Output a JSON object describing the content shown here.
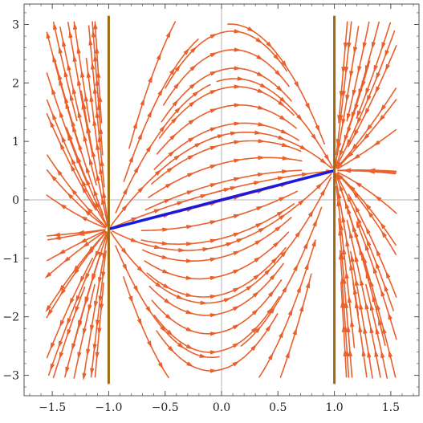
{
  "chart_data": {
    "type": "stream",
    "title": "",
    "xlabel": "",
    "ylabel": "",
    "xlim": [
      -1.75,
      1.75
    ],
    "ylim": [
      -3.35,
      3.35
    ],
    "x_ticks": [
      {
        "value": -1.5,
        "label": "−1.5"
      },
      {
        "value": -1.0,
        "label": "−1.0"
      },
      {
        "value": -0.5,
        "label": "−0.5"
      },
      {
        "value": 0.0,
        "label": "0.0"
      },
      {
        "value": 0.5,
        "label": "0.5"
      },
      {
        "value": 1.0,
        "label": "1.0"
      },
      {
        "value": 1.5,
        "label": "1.5"
      }
    ],
    "y_ticks": [
      {
        "value": -3,
        "label": "−3"
      },
      {
        "value": -2,
        "label": "−2"
      },
      {
        "value": -1,
        "label": "−1"
      },
      {
        "value": 0,
        "label": "0"
      },
      {
        "value": 1,
        "label": "1"
      },
      {
        "value": 2,
        "label": "2"
      },
      {
        "value": 3,
        "label": "3"
      }
    ],
    "grid": false,
    "axes_lines_through_origin": true,
    "vector_field": {
      "description": "stream plot, arrows along stream lines",
      "x_range": [
        -1.5,
        1.5
      ],
      "y_range": [
        -3,
        3
      ],
      "focus_points": [
        {
          "x": -1.0,
          "y": -0.5
        },
        {
          "x": 1.0,
          "y": 0.5
        }
      ],
      "color": "#e8602c"
    },
    "series": [
      {
        "type": "line",
        "color": "#1a1adc",
        "points": [
          {
            "x": -1.0,
            "y": -0.5
          },
          {
            "x": 1.0,
            "y": 0.5
          }
        ]
      },
      {
        "type": "line",
        "color": "#9c6a10",
        "points": [
          {
            "x": -1.0,
            "y": -3.15
          },
          {
            "x": -1.0,
            "y": 3.15
          }
        ]
      },
      {
        "type": "line",
        "color": "#9c6a10",
        "points": [
          {
            "x": 1.0,
            "y": -3.15
          },
          {
            "x": 1.0,
            "y": 3.15
          }
        ]
      }
    ],
    "colors": {
      "stream": "#e8602c",
      "center_line": "#1a1adc",
      "vertical_lines": "#9c6a10",
      "axes": "#b5b5b5",
      "frame": "#555555"
    }
  }
}
